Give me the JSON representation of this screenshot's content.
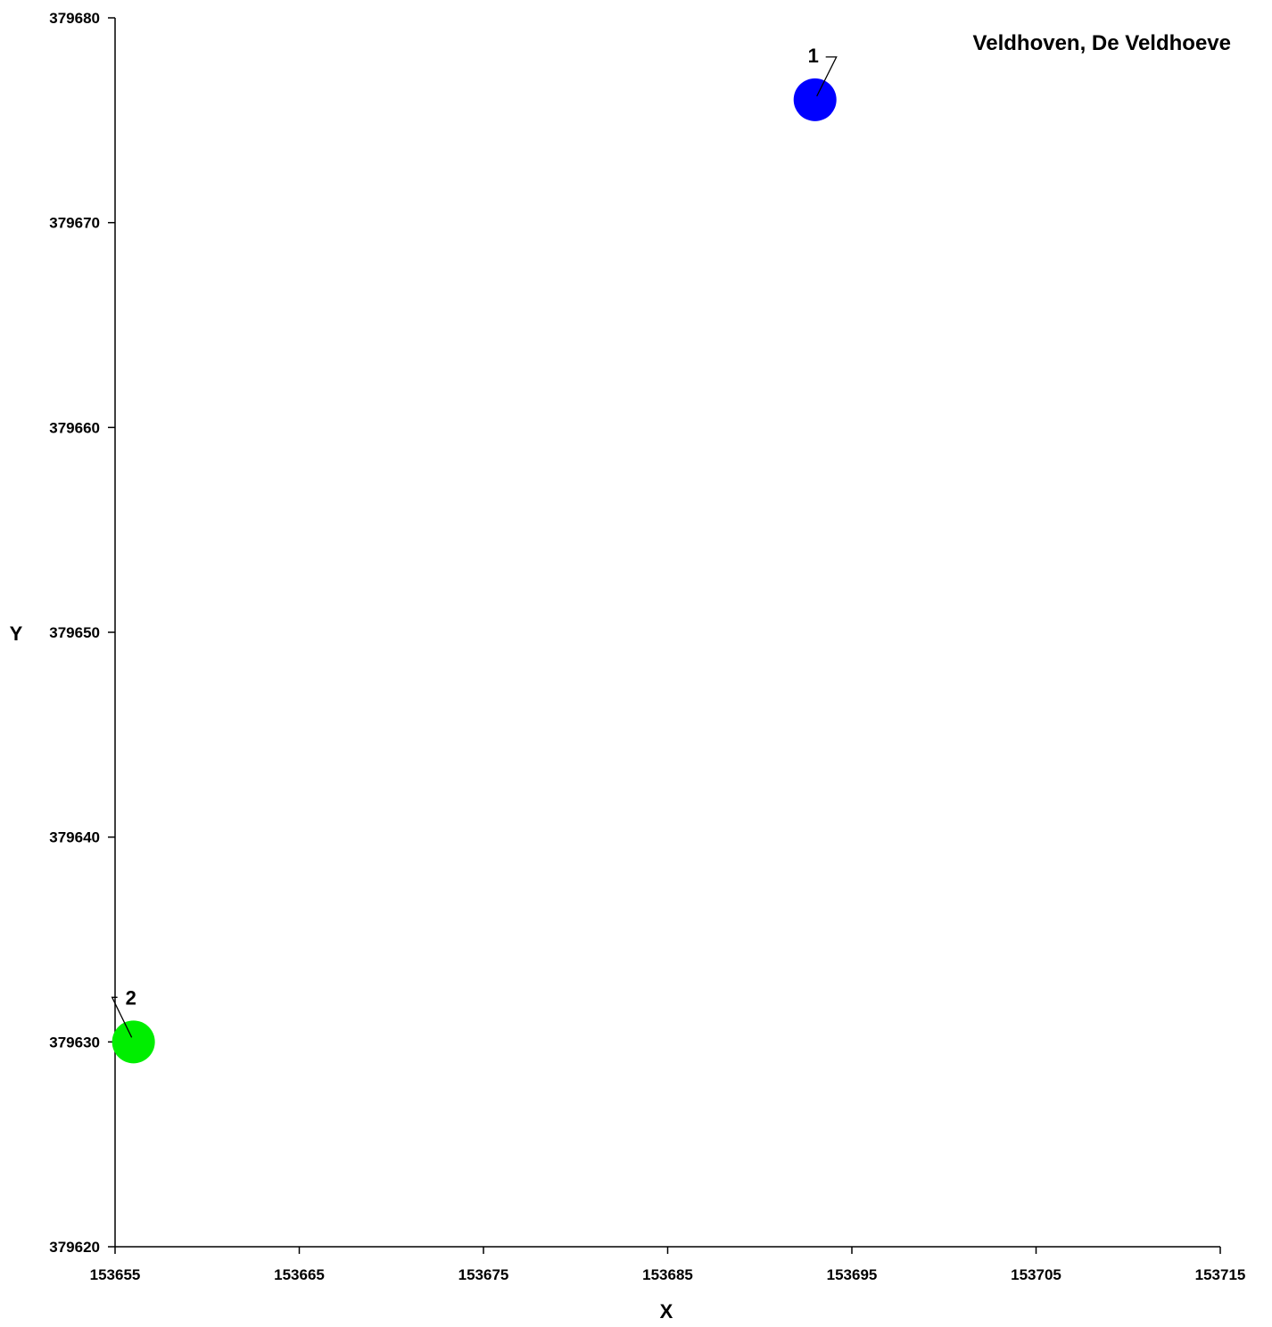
{
  "chart_data": {
    "type": "scatter",
    "title": "Veldhoven, De Veldhoeve",
    "xlabel": "X",
    "ylabel": "Y",
    "xlim": [
      153655,
      153715
    ],
    "ylim": [
      379620,
      379680
    ],
    "x_ticks": [
      "153655",
      "153665",
      "153675",
      "153685",
      "153695",
      "153705",
      "153715"
    ],
    "y_ticks": [
      "379620",
      "379630",
      "379640",
      "379650",
      "379660",
      "379670",
      "379680"
    ],
    "grid": false,
    "points": [
      {
        "label": "1",
        "x": 153693,
        "y": 379676,
        "color": "#0000ff"
      },
      {
        "label": "2",
        "x": 153656,
        "y": 379630,
        "color": "#00ee00"
      }
    ]
  }
}
